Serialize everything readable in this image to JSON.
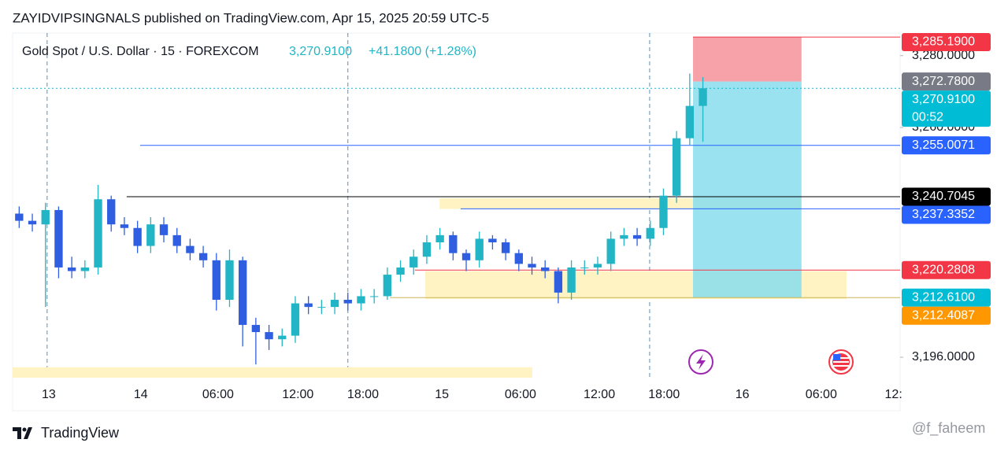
{
  "header": {
    "published": "ZAYIDVIPSINGNALS published on TradingView.com, Apr 15, 2025 20:59 UTC-5",
    "symbol": "Gold Spot / U.S. Dollar · 15 · FOREXCOM",
    "price": "3,270.9100",
    "change": "+41.1800 (+1.28%)"
  },
  "footer": {
    "brand": "TradingView",
    "watermark": "@f_faheem"
  },
  "chart_data": {
    "type": "candlestick",
    "up_color": "#22b5c6",
    "down_color": "#2f5fe0",
    "x": [
      2,
      6,
      10,
      14,
      18,
      22,
      26,
      30,
      34,
      38,
      42,
      46,
      50,
      54,
      58,
      62,
      66,
      70,
      74,
      78,
      82,
      86,
      90,
      94,
      98,
      102,
      106,
      110,
      114,
      118,
      122,
      126,
      130,
      134,
      138,
      142,
      146,
      150,
      154,
      158,
      162,
      166,
      170,
      174,
      178,
      182,
      186,
      190,
      194,
      198,
      202,
      206,
      210
    ],
    "open": [
      3236,
      3234,
      3233,
      3237,
      3221,
      3220,
      3221,
      3240,
      3233,
      3232,
      3227,
      3233,
      3230,
      3227,
      3225,
      3223,
      3212,
      3223,
      3205,
      3203,
      3201,
      3202,
      3211,
      3210,
      3210,
      3212,
      3211,
      3213,
      3213,
      3219,
      3221,
      3224,
      3228,
      3230,
      3225,
      3223,
      3229,
      3228,
      3225,
      3222,
      3221,
      3220,
      3214,
      3221,
      3221,
      3222,
      3229,
      3230,
      3229,
      3232,
      3241,
      3257,
      3266
    ],
    "high": [
      3238,
      3236,
      3239,
      3238,
      3224,
      3223,
      3244,
      3241,
      3235,
      3234,
      3235,
      3235,
      3232,
      3229,
      3227,
      3225,
      3226,
      3224,
      3207,
      3205,
      3204,
      3213,
      3213,
      3212,
      3214,
      3214,
      3215,
      3215,
      3221,
      3223,
      3226,
      3230,
      3232,
      3231,
      3226,
      3231,
      3230,
      3229,
      3226,
      3224,
      3223,
      3221,
      3223,
      3223,
      3224,
      3231,
      3232,
      3232,
      3234,
      3243,
      3259,
      3275,
      3274
    ],
    "low": [
      3232,
      3231,
      3210,
      3218,
      3218,
      3218,
      3219,
      3231,
      3230,
      3225,
      3225,
      3228,
      3225,
      3223,
      3221,
      3209,
      3210,
      3199,
      3194,
      3198,
      3199,
      3200,
      3208,
      3208,
      3208,
      3209,
      3209,
      3211,
      3212,
      3217,
      3219,
      3222,
      3226,
      3223,
      3220,
      3221,
      3226,
      3223,
      3220,
      3219,
      3218,
      3211,
      3212,
      3219,
      3219,
      3220,
      3227,
      3227,
      3227,
      3230,
      3239,
      3255,
      3256
    ],
    "close": [
      3234,
      3233,
      3237,
      3221,
      3220,
      3221,
      3240,
      3233,
      3232,
      3227,
      3233,
      3230,
      3227,
      3225,
      3223,
      3212,
      3223,
      3205,
      3203,
      3201,
      3202,
      3211,
      3210,
      3210,
      3212,
      3211,
      3213,
      3213,
      3219,
      3221,
      3224,
      3228,
      3230,
      3225,
      3223,
      3229,
      3228,
      3225,
      3222,
      3221,
      3220,
      3214,
      3221,
      3221,
      3222,
      3229,
      3230,
      3229,
      3232,
      3241,
      3257,
      3266,
      3270.91
    ],
    "xlim": [
      0,
      270
    ],
    "xticks": [
      {
        "value": 11,
        "label": "13"
      },
      {
        "value": 39,
        "label": "14"
      },
      {
        "value": 62.5,
        "label": "06:00"
      },
      {
        "value": 86.8,
        "label": "12:00"
      },
      {
        "value": 106.6,
        "label": "18:00"
      },
      {
        "value": 130.6,
        "label": "15"
      },
      {
        "value": 154.5,
        "label": "06:00"
      },
      {
        "value": 178.5,
        "label": "12:00"
      },
      {
        "value": 198.2,
        "label": "18:00"
      },
      {
        "value": 222,
        "label": "16"
      },
      {
        "value": 246,
        "label": "06:00"
      },
      {
        "value": 268,
        "label": "12:"
      }
    ],
    "ylim": [
      3190.3,
      3286.3
    ],
    "yticks": [
      {
        "value": 3280,
        "label": "3,280.0000"
      },
      {
        "value": 3260,
        "label": "3,260.0000"
      },
      {
        "value": 3196,
        "label": "3,196.0000"
      }
    ],
    "session_breaks": [
      10.5,
      102,
      193.8
    ],
    "zones": [
      {
        "x": [
          129.9,
          240
        ],
        "y": [
          3237.3,
          3240.3
        ],
        "color": "#fff3c4"
      },
      {
        "x": [
          125.5,
          253.7
        ],
        "y": [
          3212.2,
          3220
        ],
        "color": "#fff3c4"
      },
      {
        "x": [
          0,
          158.1
        ],
        "y": [
          3190.3,
          3193.2
        ],
        "color": "#fff3c4"
      }
    ],
    "position": {
      "x": [
        207,
        240
      ],
      "entry": 3272.78,
      "stop": 3285.19,
      "target": 3212.61,
      "stop_color": "#f7a1a9",
      "target_color": "#88dded"
    },
    "levels": [
      {
        "value": 3285.19,
        "label": "3,285.1900",
        "color": "#f23645",
        "line_start": 207
      },
      {
        "value": 3272.78,
        "label": "3,272.7800",
        "color": "#787b86",
        "line_start": null
      },
      {
        "value": 3270.91,
        "label": "3,270.9100",
        "color": "#00bcd4",
        "line_start": 0,
        "countdown": "00:52"
      },
      {
        "value": 3255.0071,
        "label": "3,255.0071",
        "color": "#2962ff",
        "line_start": 38.8
      },
      {
        "value": 3240.7045,
        "label": "3,240.7045",
        "color": "#000000",
        "line_start": 34.7
      },
      {
        "value": 3237.3352,
        "label": "3,237.3352",
        "color": "#2962ff",
        "line_start": 136.3
      },
      {
        "value": 3220.2808,
        "label": "3,220.2808",
        "color": "#f23645",
        "line_start": 122.4
      },
      {
        "value": 3212.61,
        "label": "3,212.6100",
        "color": "#00bcd4",
        "line_color": "#c9b458",
        "line_start": 114.8
      },
      {
        "value": 3212.4087,
        "label": "3,212.4087",
        "color": "#ff9800",
        "line_start": null
      }
    ]
  }
}
